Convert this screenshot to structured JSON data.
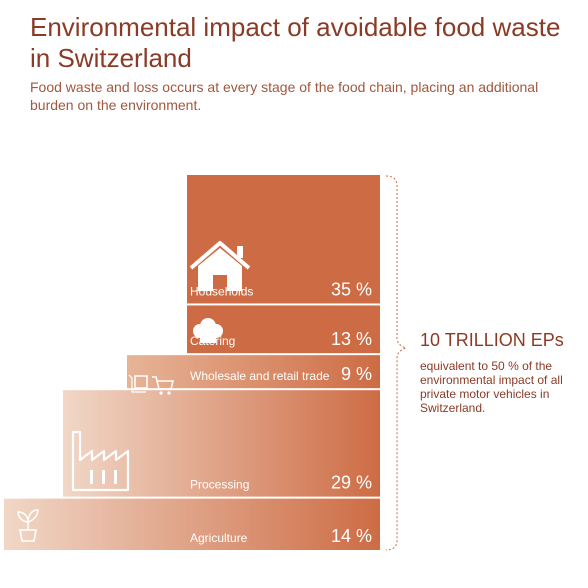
{
  "header": {
    "title": "Environmental impact of avoidable food waste in Switzerland",
    "subtitle": "Food waste and loss occurs at every stage of the food chain, placing an additional burden on the environment."
  },
  "summary": {
    "total": "10 TRILLION EPs",
    "note": "equivalent to 50 % of the environmental impact of all private motor vehicles in Switzerland."
  },
  "colors": {
    "bar": "#cd6c44",
    "bar_light": "#f1d7c7",
    "bracket": "#cd6c44",
    "title": "#8b3a26"
  },
  "chart_data": {
    "type": "bar",
    "orientation": "stacked-vertical",
    "categories": [
      "Households",
      "Catering",
      "Wholesale and retail trade",
      "Processing",
      "Agriculture"
    ],
    "values": [
      35,
      13,
      9,
      29,
      14
    ],
    "value_labels": [
      "35 %",
      "13 %",
      "9 %",
      "29 %",
      "14 %"
    ],
    "icons": [
      "house-icon",
      "chef-hat-icon",
      "shopping-cart-icon",
      "factory-icon",
      "plant-icon"
    ],
    "unit": "%",
    "total_label": "10 TRILLION EPs"
  }
}
